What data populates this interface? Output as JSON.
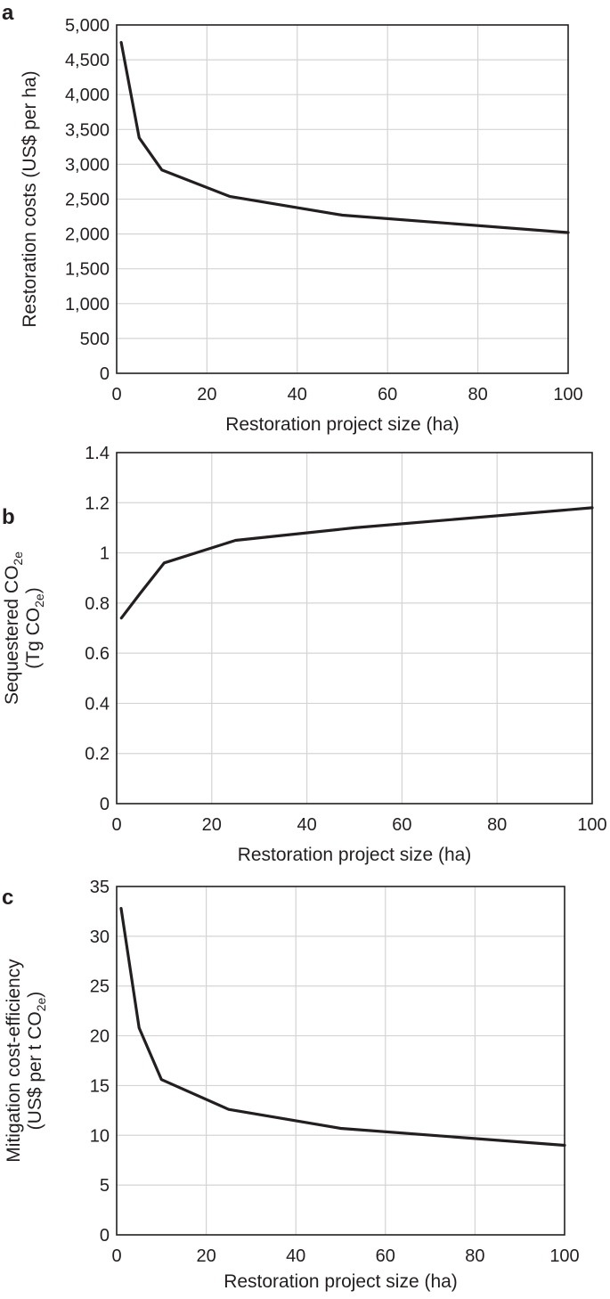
{
  "chart_data": [
    {
      "panel": "a",
      "type": "line",
      "xlabel": "Restoration project size (ha)",
      "ylabel_lines": [
        "Restoration costs (US$ per ha)"
      ],
      "xlim": [
        0,
        100
      ],
      "ylim": [
        0,
        5000
      ],
      "xticks": [
        0,
        20,
        40,
        60,
        80,
        100
      ],
      "yticks": [
        0,
        500,
        1000,
        1500,
        2000,
        2500,
        3000,
        3500,
        4000,
        4500,
        5000
      ],
      "xtick_labels": [
        "0",
        "20",
        "40",
        "60",
        "80",
        "100"
      ],
      "ytick_labels": [
        "0",
        "500",
        "1,000",
        "1,500",
        "2,000",
        "2,500",
        "3,000",
        "3,500",
        "4,000",
        "4,500",
        "5,000"
      ],
      "grid": true,
      "series": [
        {
          "x": [
            1,
            5,
            10,
            25,
            50,
            100
          ],
          "y": [
            4750,
            3380,
            2920,
            2540,
            2270,
            2020
          ]
        }
      ]
    },
    {
      "panel": "b",
      "type": "line",
      "xlabel": "Restoration project size (ha)",
      "ylabel_lines": [
        "Sequestered CO",
        "(Tg CO",
        ")"
      ],
      "ylabel_sub": "2e",
      "xlim": [
        0,
        100
      ],
      "ylim": [
        0,
        1.4
      ],
      "xticks": [
        0,
        20,
        40,
        60,
        80,
        100
      ],
      "yticks": [
        0,
        0.2,
        0.4,
        0.6,
        0.8,
        1,
        1.2,
        1.4
      ],
      "xtick_labels": [
        "0",
        "20",
        "40",
        "60",
        "80",
        "100"
      ],
      "ytick_labels": [
        "0",
        "0.2",
        "0.4",
        "0.6",
        "0.8",
        "1",
        "1.2",
        "1.4"
      ],
      "grid": true,
      "series": [
        {
          "x": [
            1,
            5,
            10,
            25,
            50,
            100
          ],
          "y": [
            0.74,
            0.84,
            0.96,
            1.05,
            1.1,
            1.18
          ]
        }
      ]
    },
    {
      "panel": "c",
      "type": "line",
      "xlabel": "Restoration project size (ha)",
      "ylabel_lines": [
        "Mitigation cost-efficiency",
        "(US$ per t CO",
        ")"
      ],
      "ylabel_sub": "2e",
      "xlim": [
        0,
        100
      ],
      "ylim": [
        0,
        35
      ],
      "xticks": [
        0,
        20,
        40,
        60,
        80,
        100
      ],
      "yticks": [
        0,
        5,
        10,
        15,
        20,
        25,
        30,
        35
      ],
      "xtick_labels": [
        "0",
        "20",
        "40",
        "60",
        "80",
        "100"
      ],
      "ytick_labels": [
        "0",
        "5",
        "10",
        "15",
        "20",
        "25",
        "30",
        "35"
      ],
      "grid": true,
      "series": [
        {
          "x": [
            1,
            5,
            10,
            25,
            50,
            100
          ],
          "y": [
            32.8,
            20.8,
            15.6,
            12.6,
            10.7,
            9.0
          ]
        }
      ]
    }
  ]
}
